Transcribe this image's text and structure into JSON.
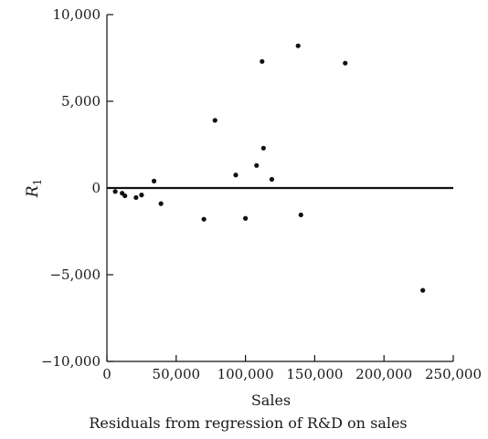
{
  "chart_data": {
    "type": "scatter",
    "title": "",
    "xlabel": "Sales",
    "ylabel": "R",
    "ylabel_subscript": "1",
    "caption": "Residuals from regression of R&D on sales",
    "xlim": [
      0,
      250000
    ],
    "ylim": [
      -10000,
      10000
    ],
    "grid": false,
    "legend": "none",
    "reference_line_y": 0,
    "xticks": [
      0,
      50000,
      100000,
      150000,
      200000,
      250000
    ],
    "xtick_labels": [
      "0",
      "50,000",
      "100,000",
      "150,000",
      "200,000",
      "250,000"
    ],
    "yticks": [
      10000,
      5000,
      0,
      -5000,
      -10000
    ],
    "ytick_labels": [
      "10,000",
      "5,000",
      "0",
      "−5,000",
      "−10,000"
    ],
    "point_color": "#111111",
    "series": [
      {
        "x": [
          6000,
          11000,
          13000,
          21000,
          25000,
          34000,
          39000,
          70000,
          78000,
          93000,
          100000,
          108000,
          112000,
          113000,
          119000,
          138000,
          140000,
          172000,
          228000
        ],
        "y": [
          -200,
          -300,
          -450,
          -550,
          -400,
          400,
          -900,
          -1800,
          3900,
          750,
          -1750,
          1300,
          7300,
          2300,
          500,
          8200,
          -1550,
          7200,
          -5900
        ]
      }
    ]
  }
}
